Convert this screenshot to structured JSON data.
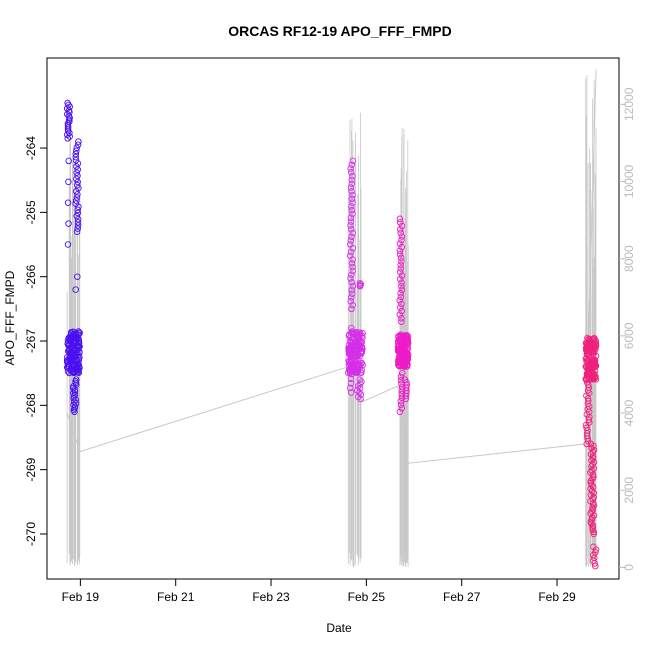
{
  "chart_data": {
    "type": "scatter",
    "title": "ORCAS RF12-19 APO_FFF_FMPD",
    "xlabel": "Date",
    "ylabel": "APO_FFF_FMPD",
    "x_ticks": [
      "Feb 19",
      "Feb 21",
      "Feb 23",
      "Feb 25",
      "Feb 27",
      "Feb 29"
    ],
    "x_tick_days": [
      19,
      21,
      23,
      25,
      27,
      29
    ],
    "xlim_days": [
      18.3,
      30.3
    ],
    "ylim": [
      -270.7,
      -262.6
    ],
    "y_ticks": [
      -264,
      -265,
      -266,
      -267,
      -268,
      -269,
      -270
    ],
    "y2_ticks": [
      0,
      2000,
      4000,
      6000,
      8000,
      10000,
      12000
    ],
    "y2lim": [
      -300,
      13200
    ],
    "grid": false,
    "flights": [
      {
        "start": 18.72,
        "end": 18.99,
        "color": "#4b10f0",
        "main_band": [
          -267.5,
          -266.85
        ],
        "clusters": [
          {
            "x": [
              18.72,
              18.78
            ],
            "y": [
              -263.3,
              -263.85
            ],
            "n": 20
          },
          {
            "x": [
              18.72,
              18.76
            ],
            "y": [
              -264.2,
              -265.5
            ],
            "n": 5
          },
          {
            "x": [
              18.9,
              18.96
            ],
            "y": [
              -263.9,
              -265.3
            ],
            "n": 30
          },
          {
            "x": [
              18.85,
              18.92
            ],
            "y": [
              -267.6,
              -268.1
            ],
            "n": 20
          },
          {
            "x": [
              18.9,
              18.95
            ],
            "y": [
              -266.0,
              -266.2
            ],
            "n": 2
          }
        ]
      },
      {
        "start": 24.62,
        "end": 24.93,
        "color": "#d62ee8",
        "main_band": [
          -267.5,
          -266.85
        ],
        "clusters": [
          {
            "x": [
              24.66,
              24.72
            ],
            "y": [
              -264.2,
              -266.5
            ],
            "n": 40
          },
          {
            "x": [
              24.66,
              24.7
            ],
            "y": [
              -266.8,
              -267.8
            ],
            "n": 15
          },
          {
            "x": [
              24.86,
              24.92
            ],
            "y": [
              -266.1,
              -266.15
            ],
            "n": 4
          },
          {
            "x": [
              24.8,
              24.9
            ],
            "y": [
              -267.6,
              -267.9
            ],
            "n": 10
          }
        ]
      },
      {
        "start": 25.66,
        "end": 25.88,
        "color": "#ee1ac8",
        "main_band": [
          -267.4,
          -266.9
        ],
        "clusters": [
          {
            "x": [
              25.7,
              25.75
            ],
            "y": [
              -265.1,
              -266.7
            ],
            "n": 30
          },
          {
            "x": [
              25.7,
              25.76
            ],
            "y": [
              -267.5,
              -268.1
            ],
            "n": 12
          },
          {
            "x": [
              25.8,
              25.86
            ],
            "y": [
              -267.6,
              -267.9
            ],
            "n": 8
          }
        ]
      },
      {
        "start": 29.6,
        "end": 29.82,
        "color": "#f0207a",
        "main_band": [
          -267.6,
          -266.95
        ],
        "clusters": [
          {
            "x": [
              29.6,
              29.68
            ],
            "y": [
              -267.6,
              -268.6
            ],
            "n": 25
          },
          {
            "x": [
              29.7,
              29.78
            ],
            "y": [
              -268.6,
              -270.0
            ],
            "n": 45
          },
          {
            "x": [
              29.76,
              29.82
            ],
            "y": [
              -270.2,
              -270.5
            ],
            "n": 8
          }
        ]
      }
    ],
    "altitude_track": {
      "axis": "right",
      "color": "#c8c8c8",
      "points": [
        [
          18.72,
          4000
        ],
        [
          18.99,
          3000
        ],
        [
          24.62,
          5200
        ],
        [
          24.93,
          4300
        ],
        [
          25.66,
          4700
        ],
        [
          25.88,
          2700
        ],
        [
          29.6,
          3200
        ],
        [
          29.82,
          12900
        ]
      ]
    }
  }
}
